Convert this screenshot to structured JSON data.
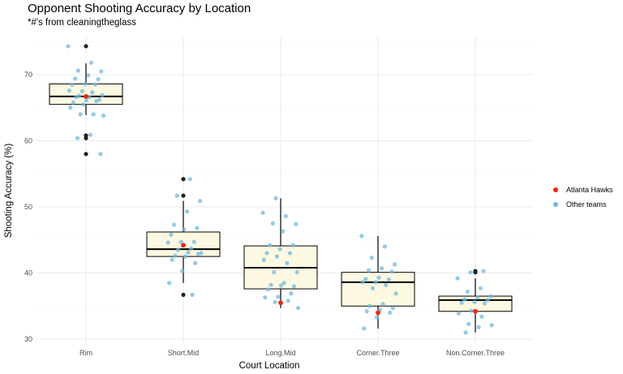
{
  "chart_data": {
    "type": "boxplot",
    "title": "Opponent Shooting Accuracy by Location",
    "subtitle": "*#'s from cleaningtheglass",
    "xlabel": "Court Location",
    "ylabel": "Shooting Accuracy (%)",
    "ylim": [
      28.9,
      75.5
    ],
    "yticks": [
      30,
      40,
      50,
      60,
      70
    ],
    "grid": true,
    "legend_position": "right",
    "colors": {
      "box_fill": "#fdf8e1",
      "box_stroke": "#000000",
      "highlight": "#ff2200",
      "others": "#6bbbe0",
      "outlier": "#222222"
    },
    "legend": [
      {
        "label": "Atlanta Hawks",
        "color": "#ff2200"
      },
      {
        "label": "Other teams",
        "color": "#6bbbe0"
      }
    ],
    "categories": [
      "Rim",
      "Short.Mid",
      "Long.Mid",
      "Corner.Three",
      "Non.Corner.Three"
    ],
    "boxes": [
      {
        "q1": 65.5,
        "median": 66.7,
        "q3": 68.6,
        "whisker_low": 63.9,
        "whisker_high": 71.7,
        "outliers": [
          74.3,
          60.8,
          60.4,
          58.0
        ]
      },
      {
        "q1": 42.5,
        "median": 43.6,
        "q3": 46.2,
        "whisker_low": 38.5,
        "whisker_high": 50.9,
        "outliers": [
          54.2,
          51.7,
          36.7
        ]
      },
      {
        "q1": 37.6,
        "median": 40.8,
        "q3": 44.1,
        "whisker_low": 34.7,
        "whisker_high": 51.3,
        "outliers": []
      },
      {
        "q1": 35.0,
        "median": 38.6,
        "q3": 40.1,
        "whisker_low": 31.6,
        "whisker_high": 45.6,
        "outliers": []
      },
      {
        "q1": 34.2,
        "median": 35.9,
        "q3": 36.5,
        "whisker_low": 31.0,
        "whisker_high": 39.2,
        "outliers": [
          40.3,
          40.1
        ]
      }
    ],
    "atlanta_hawks": [
      66.7,
      44.2,
      35.5,
      34.0,
      34.2
    ],
    "other_teams": [
      [
        74.3,
        71.8,
        70.6,
        70.5,
        69.9,
        69.4,
        69.3,
        68.6,
        68.5,
        68.5,
        67.5,
        67.6,
        67.3,
        66.8,
        66.9,
        66.6,
        66.6,
        66.2,
        66.1,
        65.8,
        66.0,
        65.5,
        65.0,
        64.0,
        64.0,
        63.8,
        60.9,
        60.4,
        58.0
      ],
      [
        54.2,
        51.7,
        50.9,
        49.3,
        47.3,
        46.8,
        46.6,
        45.8,
        44.7,
        44.7,
        44.6,
        43.7,
        43.5,
        43.0,
        43.1,
        42.6,
        42.9,
        42.5,
        42.0,
        41.5,
        40.3,
        38.5,
        36.7
      ],
      [
        51.3,
        49.1,
        48.6,
        47.5,
        47.4,
        46.3,
        44.2,
        44.2,
        43.6,
        43.0,
        43.0,
        42.5,
        42.0,
        41.5,
        40.1,
        40.1,
        38.5,
        38.2,
        38.0,
        38.1,
        37.5,
        36.9,
        36.4,
        36.3,
        35.8,
        35.6,
        34.7
      ],
      [
        45.6,
        44.0,
        42.3,
        41.3,
        40.7,
        40.4,
        40.2,
        39.3,
        39.1,
        39.0,
        38.6,
        38.6,
        38.2,
        37.7,
        36.9,
        35.3,
        35.0,
        34.7,
        34.4,
        34.2,
        34.0,
        33.3,
        31.6
      ],
      [
        40.3,
        40.1,
        39.2,
        37.7,
        37.2,
        36.5,
        36.3,
        36.0,
        35.9,
        35.6,
        35.5,
        35.4,
        34.3,
        33.9,
        33.4,
        32.3,
        32.1,
        31.8,
        31.0
      ]
    ]
  }
}
